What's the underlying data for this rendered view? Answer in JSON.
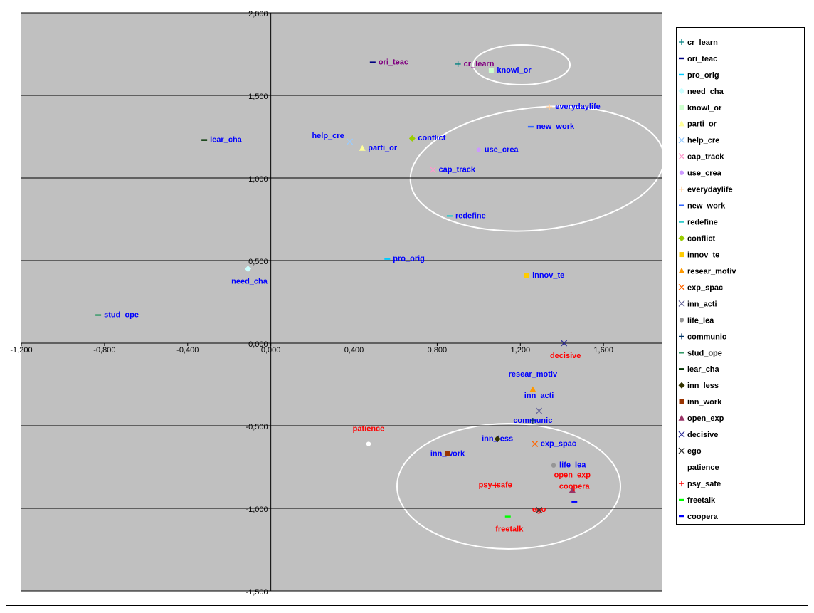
{
  "chart_data": {
    "type": "scatter",
    "xlim": [
      -1.2,
      1.88
    ],
    "ylim": [
      -1.5,
      2
    ],
    "xticks": [
      {
        "value": -1.2,
        "label": "-1,200"
      },
      {
        "value": -0.8,
        "label": "-0,800"
      },
      {
        "value": -0.4,
        "label": "-0,400"
      },
      {
        "value": 0,
        "label": "0,000"
      },
      {
        "value": 0.4,
        "label": "0,400"
      },
      {
        "value": 0.8,
        "label": "0,800"
      },
      {
        "value": 1.2,
        "label": "1,200"
      },
      {
        "value": 1.6,
        "label": "1,600"
      }
    ],
    "yticks": [
      {
        "value": 2,
        "label": "2,000"
      },
      {
        "value": 1.5,
        "label": "1,500"
      },
      {
        "value": 1,
        "label": "1,000"
      },
      {
        "value": 0.5,
        "label": "0,500"
      },
      {
        "value": 0,
        "label": "0,000"
      },
      {
        "value": -0.5,
        "label": "-0,500"
      },
      {
        "value": -1,
        "label": "-1,000"
      },
      {
        "value": -1.5,
        "label": "-1,500"
      }
    ],
    "grid": true,
    "legend": "right",
    "series": [
      {
        "name": "cr_learn",
        "color": "#008080",
        "marker": "plus",
        "label_color": "#800080",
        "x": [
          0.9
        ],
        "values": [
          1.69
        ]
      },
      {
        "name": "ori_teac",
        "color": "#000080",
        "marker": "dash",
        "label_color": "#800080",
        "x": [
          0.49
        ],
        "values": [
          1.7
        ]
      },
      {
        "name": "pro_orig",
        "color": "#00ccff",
        "marker": "dash",
        "label_color": "#0000ff",
        "x": [
          0.56
        ],
        "values": [
          0.51
        ]
      },
      {
        "name": "need_cha",
        "color": "#ccffff",
        "marker": "diamond",
        "label_color": "#0000ff",
        "x": [
          -0.11
        ],
        "values": [
          0.45
        ]
      },
      {
        "name": "knowl_or",
        "color": "#ccffcc",
        "marker": "square",
        "label_color": "#0000ff",
        "x": [
          1.06
        ],
        "values": [
          1.65
        ]
      },
      {
        "name": "parti_or",
        "color": "#ffff99",
        "marker": "triangle",
        "label_color": "#0000ff",
        "x": [
          0.44
        ],
        "values": [
          1.18
        ]
      },
      {
        "name": "help_cre",
        "color": "#99ccff",
        "marker": "x",
        "label_color": "#0000ff",
        "x": [
          0.38
        ],
        "values": [
          1.22
        ]
      },
      {
        "name": "cap_track",
        "color": "#ff99cc",
        "marker": "x",
        "label_color": "#0000ff",
        "x": [
          0.78
        ],
        "values": [
          1.05
        ]
      },
      {
        "name": "use_crea",
        "color": "#cc99ff",
        "marker": "circle",
        "label_color": "#0000ff",
        "x": [
          1.0
        ],
        "values": [
          1.17
        ]
      },
      {
        "name": "everydaylife",
        "color": "#ffcc99",
        "marker": "plus",
        "label_color": "#0000ff",
        "x": [
          1.34
        ],
        "values": [
          1.43
        ]
      },
      {
        "name": "new_work",
        "color": "#3366ff",
        "marker": "dash",
        "label_color": "#0000ff",
        "x": [
          1.25
        ],
        "values": [
          1.31
        ]
      },
      {
        "name": "redefine",
        "color": "#33cccc",
        "marker": "dash",
        "label_color": "#0000ff",
        "x": [
          0.86
        ],
        "values": [
          0.77
        ]
      },
      {
        "name": "conflict",
        "color": "#99cc00",
        "marker": "diamond",
        "label_color": "#0000ff",
        "x": [
          0.68
        ],
        "values": [
          1.24
        ]
      },
      {
        "name": "innov_te",
        "color": "#ffcc00",
        "marker": "square",
        "label_color": "#0000ff",
        "x": [
          1.23
        ],
        "values": [
          0.41
        ]
      },
      {
        "name": "resear_motiv",
        "color": "#ff9900",
        "marker": "triangle",
        "label_color": "#0000ff",
        "x": [
          1.26
        ],
        "values": [
          -0.28
        ]
      },
      {
        "name": "exp_spac",
        "color": "#ff6600",
        "marker": "x",
        "label_color": "#0000ff",
        "x": [
          1.27
        ],
        "values": [
          -0.61
        ]
      },
      {
        "name": "inn_acti",
        "color": "#666699",
        "marker": "x",
        "label_color": "#0000ff",
        "x": [
          1.29
        ],
        "values": [
          -0.41
        ]
      },
      {
        "name": "life_lea",
        "color": "#969696",
        "marker": "circle",
        "label_color": "#0000ff",
        "x": [
          1.36
        ],
        "values": [
          -0.74
        ]
      },
      {
        "name": "communic",
        "color": "#003366",
        "marker": "plus",
        "label_color": "#0000ff",
        "x": [
          1.26
        ],
        "values": [
          -0.47
        ]
      },
      {
        "name": "stud_ope",
        "color": "#339966",
        "marker": "dash",
        "label_color": "#0000ff",
        "x": [
          -0.83
        ],
        "values": [
          0.17
        ]
      },
      {
        "name": "lear_cha",
        "color": "#003300",
        "marker": "dash",
        "label_color": "#0000ff",
        "x": [
          -0.32
        ],
        "values": [
          1.23
        ]
      },
      {
        "name": "inn_less",
        "color": "#333300",
        "marker": "diamond",
        "label_color": "#0000ff",
        "x": [
          1.09
        ],
        "values": [
          -0.58
        ]
      },
      {
        "name": "inn_work",
        "color": "#993300",
        "marker": "square",
        "label_color": "#0000ff",
        "x": [
          0.85
        ],
        "values": [
          -0.67
        ]
      },
      {
        "name": "open_exp",
        "color": "#993366",
        "marker": "triangle",
        "label_color": "#ff0000",
        "x": [
          1.45
        ],
        "values": [
          -0.89
        ]
      },
      {
        "name": "decisive",
        "color": "#333399",
        "marker": "x",
        "label_color": "#ff0000",
        "x": [
          1.41
        ],
        "values": [
          0.0
        ]
      },
      {
        "name": "ego",
        "color": "#333333",
        "marker": "x",
        "label_color": "#ff0000",
        "x": [
          1.29
        ],
        "values": [
          -1.01
        ]
      },
      {
        "name": "patience",
        "color": "#ffffff",
        "marker": "circle",
        "label_color": "#ff0000",
        "x": [
          0.47
        ],
        "values": [
          -0.61
        ]
      },
      {
        "name": "psy_safe",
        "color": "#ff0000",
        "marker": "plus",
        "label_color": "#ff0000",
        "x": [
          1.08
        ],
        "values": [
          -0.86
        ]
      },
      {
        "name": "freetalk",
        "color": "#00ff00",
        "marker": "dash",
        "label_color": "#ff0000",
        "x": [
          1.14
        ],
        "values": [
          -1.05
        ]
      },
      {
        "name": "coopera",
        "color": "#0000ff",
        "marker": "dash",
        "label_color": "#ff0000",
        "x": [
          1.46
        ],
        "values": [
          -0.96
        ]
      }
    ]
  }
}
